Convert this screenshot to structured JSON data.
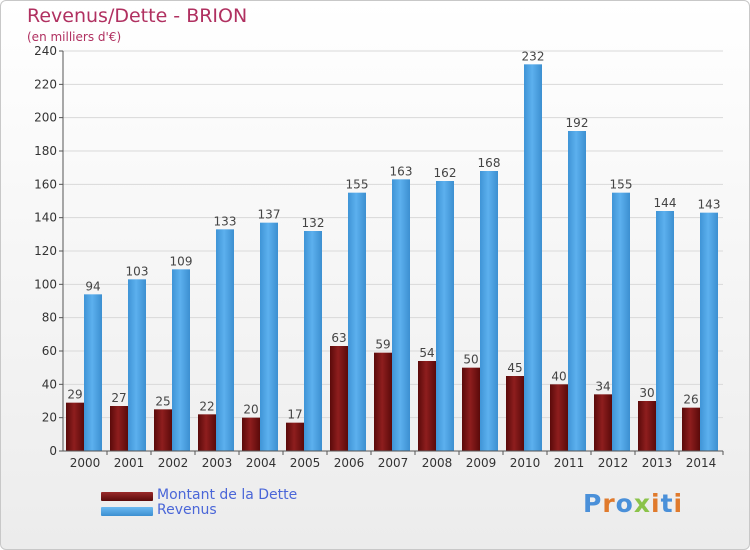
{
  "header": {
    "title": "Revenus/Dette - BRION",
    "subtitle": "(en milliers d'€)"
  },
  "legend": {
    "items": [
      {
        "label": "Montant de la Dette",
        "color": "#7a1010"
      },
      {
        "label": "Revenus",
        "color": "#4a9fe0"
      }
    ]
  },
  "logo": {
    "text": "Proxiti",
    "colors": [
      "#4a90d9",
      "#e07a2c",
      "#4a90d9",
      "#8bc34a",
      "#e07a2c",
      "#4a90d9",
      "#e07a2c"
    ]
  },
  "chart_data": {
    "type": "bar",
    "categories": [
      "2000",
      "2001",
      "2002",
      "2003",
      "2004",
      "2005",
      "2006",
      "2007",
      "2008",
      "2009",
      "2010",
      "2011",
      "2012",
      "2013",
      "2014"
    ],
    "series": [
      {
        "name": "Montant de la Dette",
        "color": "#7a1010",
        "values": [
          29,
          27,
          25,
          22,
          20,
          17,
          63,
          59,
          54,
          50,
          45,
          40,
          34,
          30,
          26
        ]
      },
      {
        "name": "Revenus",
        "color": "#4a9fe0",
        "values": [
          94,
          103,
          109,
          133,
          137,
          132,
          155,
          163,
          162,
          168,
          232,
          192,
          155,
          144,
          143
        ]
      }
    ],
    "yticks": [
      0,
      20,
      40,
      60,
      80,
      100,
      120,
      140,
      160,
      180,
      200,
      220,
      240
    ],
    "ylim": [
      0,
      240
    ],
    "grid": true
  }
}
